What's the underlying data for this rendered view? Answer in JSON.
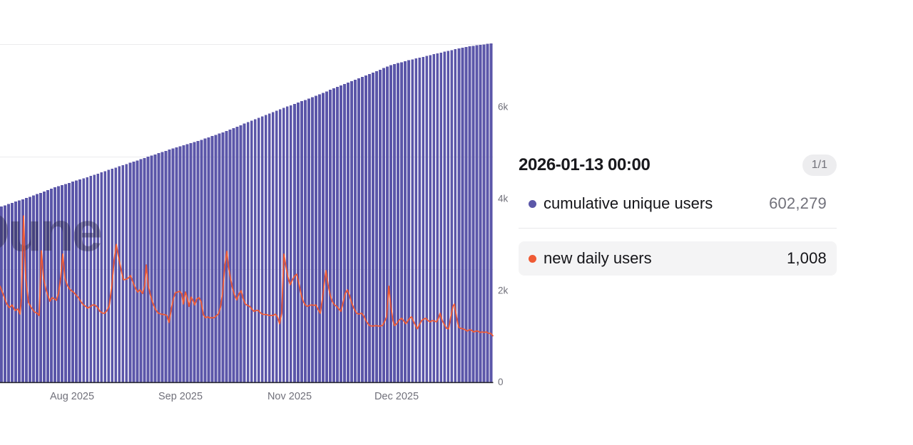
{
  "tooltip": {
    "date": "2026-01-13 00:00",
    "page_badge": "1/1",
    "rows": [
      {
        "series": "cumulative unique users",
        "value": "602,279",
        "marker_color": "#5b57a8",
        "highlighted": false
      },
      {
        "series": "new daily users",
        "value": "1,008",
        "marker_color": "#ef5a34",
        "highlighted": true
      }
    ]
  },
  "chart_data": {
    "type": "combo_bar_line",
    "title": "",
    "watermark": "Dune",
    "legend_position": "tooltip-right",
    "grid": "horizontal-only",
    "x_axis": {
      "type": "time-daily",
      "tick_labels": [
        {
          "text": "Aug 2025",
          "x": 101
        },
        {
          "text": "Sep 2025",
          "x": 253
        },
        {
          "text": "Nov 2025",
          "x": 406
        },
        {
          "text": "Dec 2025",
          "x": 556
        }
      ]
    },
    "y_axis_right": {
      "series": "new daily users",
      "range": [
        0,
        6000
      ],
      "ticks": [
        {
          "label": "6k",
          "value": 6000
        },
        {
          "label": "4k",
          "value": 4000
        },
        {
          "label": "2k",
          "value": 2000
        },
        {
          "label": "0",
          "value": 0
        }
      ]
    },
    "y_axis_left": {
      "series": "cumulative unique users",
      "hidden": true,
      "range": [
        0,
        679000
      ],
      "gridline_values": [
        200000,
        400000,
        600000
      ]
    },
    "series": [
      {
        "name": "cumulative unique users",
        "type": "bar",
        "axis": "left",
        "color": "#5b56a9",
        "bar_count": 138,
        "points": [
          [
            0,
            311000
          ],
          [
            40,
            328000
          ],
          [
            80,
            347000
          ],
          [
            120,
            363000
          ],
          [
            160,
            380000
          ],
          [
            200,
            397000
          ],
          [
            240,
            414000
          ],
          [
            280,
            429000
          ],
          [
            320,
            447000
          ],
          [
            360,
            468000
          ],
          [
            400,
            488000
          ],
          [
            440,
            507000
          ],
          [
            480,
            528000
          ],
          [
            520,
            548000
          ],
          [
            550,
            564000
          ],
          [
            580,
            574000
          ],
          [
            610,
            583000
          ],
          [
            640,
            592000
          ],
          [
            665,
            598000
          ],
          [
            691,
            602279
          ]
        ]
      },
      {
        "name": "new daily users",
        "type": "line",
        "axis": "right",
        "color": "#ef5a34",
        "points": [
          [
            0,
            2090
          ],
          [
            5,
            1890
          ],
          [
            9,
            1720
          ],
          [
            13,
            1620
          ],
          [
            17,
            1680
          ],
          [
            21,
            1560
          ],
          [
            25,
            1590
          ],
          [
            28,
            1480
          ],
          [
            30,
            1810
          ],
          [
            33,
            3620
          ],
          [
            36,
            2270
          ],
          [
            40,
            1730
          ],
          [
            44,
            1620
          ],
          [
            48,
            1530
          ],
          [
            52,
            1500
          ],
          [
            55,
            1450
          ],
          [
            58,
            2860
          ],
          [
            61,
            2270
          ],
          [
            64,
            2040
          ],
          [
            67,
            1890
          ],
          [
            70,
            1760
          ],
          [
            73,
            1840
          ],
          [
            76,
            1810
          ],
          [
            79,
            1780
          ],
          [
            82,
            1930
          ],
          [
            85,
            2270
          ],
          [
            88,
            2790
          ],
          [
            91,
            2270
          ],
          [
            94,
            2120
          ],
          [
            97,
            2040
          ],
          [
            100,
            1990
          ],
          [
            103,
            1960
          ],
          [
            107,
            1890
          ],
          [
            110,
            1840
          ],
          [
            113,
            1760
          ],
          [
            117,
            1680
          ],
          [
            120,
            1650
          ],
          [
            123,
            1610
          ],
          [
            127,
            1650
          ],
          [
            130,
            1680
          ],
          [
            133,
            1680
          ],
          [
            137,
            1620
          ],
          [
            140,
            1540
          ],
          [
            144,
            1500
          ],
          [
            147,
            1500
          ],
          [
            150,
            1560
          ],
          [
            153,
            1650
          ],
          [
            157,
            2120
          ],
          [
            160,
            2660
          ],
          [
            163,
            3000
          ],
          [
            166,
            2740
          ],
          [
            170,
            2430
          ],
          [
            173,
            2230
          ],
          [
            177,
            2240
          ],
          [
            180,
            2270
          ],
          [
            183,
            2320
          ],
          [
            187,
            2150
          ],
          [
            190,
            2040
          ],
          [
            193,
            1960
          ],
          [
            196,
            2010
          ],
          [
            200,
            1930
          ],
          [
            203,
            2120
          ],
          [
            205,
            2550
          ],
          [
            208,
            2090
          ],
          [
            211,
            1890
          ],
          [
            214,
            1730
          ],
          [
            218,
            1580
          ],
          [
            222,
            1500
          ],
          [
            226,
            1480
          ],
          [
            230,
            1470
          ],
          [
            234,
            1450
          ],
          [
            237,
            1300
          ],
          [
            240,
            1580
          ],
          [
            243,
            1810
          ],
          [
            246,
            1950
          ],
          [
            249,
            1960
          ],
          [
            252,
            1980
          ],
          [
            255,
            1920
          ],
          [
            257,
            1700
          ],
          [
            260,
            1960
          ],
          [
            263,
            1810
          ],
          [
            265,
            1650
          ],
          [
            268,
            1850
          ],
          [
            271,
            1760
          ],
          [
            273,
            1680
          ],
          [
            276,
            1810
          ],
          [
            279,
            1840
          ],
          [
            282,
            1750
          ],
          [
            285,
            1470
          ],
          [
            288,
            1400
          ],
          [
            291,
            1420
          ],
          [
            294,
            1400
          ],
          [
            297,
            1400
          ],
          [
            300,
            1400
          ],
          [
            303,
            1440
          ],
          [
            306,
            1480
          ],
          [
            309,
            1620
          ],
          [
            312,
            1930
          ],
          [
            315,
            2510
          ],
          [
            318,
            2850
          ],
          [
            320,
            2550
          ],
          [
            323,
            2270
          ],
          [
            326,
            2040
          ],
          [
            329,
            1890
          ],
          [
            332,
            1790
          ],
          [
            335,
            1920
          ],
          [
            338,
            1990
          ],
          [
            341,
            1810
          ],
          [
            344,
            1700
          ],
          [
            347,
            1670
          ],
          [
            350,
            1650
          ],
          [
            353,
            1590
          ],
          [
            356,
            1540
          ],
          [
            359,
            1560
          ],
          [
            362,
            1560
          ],
          [
            365,
            1510
          ],
          [
            368,
            1480
          ],
          [
            371,
            1470
          ],
          [
            374,
            1470
          ],
          [
            377,
            1450
          ],
          [
            380,
            1450
          ],
          [
            383,
            1450
          ],
          [
            386,
            1480
          ],
          [
            389,
            1420
          ],
          [
            392,
            1270
          ],
          [
            395,
            1500
          ],
          [
            398,
            2790
          ],
          [
            401,
            2510
          ],
          [
            404,
            2270
          ],
          [
            407,
            2120
          ],
          [
            410,
            2230
          ],
          [
            413,
            2310
          ],
          [
            416,
            2350
          ],
          [
            419,
            2150
          ],
          [
            422,
            1920
          ],
          [
            425,
            1760
          ],
          [
            428,
            1680
          ],
          [
            431,
            1650
          ],
          [
            434,
            1670
          ],
          [
            437,
            1680
          ],
          [
            440,
            1670
          ],
          [
            443,
            1680
          ],
          [
            446,
            1580
          ],
          [
            449,
            1500
          ],
          [
            452,
            1810
          ],
          [
            455,
            2200
          ],
          [
            457,
            2430
          ],
          [
            460,
            2120
          ],
          [
            463,
            1890
          ],
          [
            466,
            1750
          ],
          [
            469,
            1680
          ],
          [
            472,
            1650
          ],
          [
            475,
            1590
          ],
          [
            478,
            1540
          ],
          [
            481,
            1730
          ],
          [
            484,
            1930
          ],
          [
            487,
            2010
          ],
          [
            490,
            1890
          ],
          [
            493,
            1730
          ],
          [
            496,
            1610
          ],
          [
            500,
            1500
          ],
          [
            503,
            1480
          ],
          [
            507,
            1500
          ],
          [
            510,
            1440
          ],
          [
            513,
            1340
          ],
          [
            516,
            1270
          ],
          [
            518,
            1230
          ],
          [
            521,
            1220
          ],
          [
            524,
            1220
          ],
          [
            527,
            1230
          ],
          [
            530,
            1220
          ],
          [
            533,
            1220
          ],
          [
            536,
            1230
          ],
          [
            539,
            1310
          ],
          [
            542,
            1420
          ],
          [
            545,
            2090
          ],
          [
            548,
            1650
          ],
          [
            551,
            1340
          ],
          [
            553,
            1230
          ],
          [
            556,
            1270
          ],
          [
            559,
            1340
          ],
          [
            563,
            1390
          ],
          [
            566,
            1330
          ],
          [
            569,
            1270
          ],
          [
            572,
            1340
          ],
          [
            575,
            1400
          ],
          [
            577,
            1420
          ],
          [
            580,
            1310
          ],
          [
            583,
            1220
          ],
          [
            585,
            1160
          ],
          [
            588,
            1250
          ],
          [
            591,
            1340
          ],
          [
            594,
            1370
          ],
          [
            597,
            1390
          ],
          [
            600,
            1340
          ],
          [
            603,
            1310
          ],
          [
            606,
            1340
          ],
          [
            609,
            1330
          ],
          [
            612,
            1310
          ],
          [
            615,
            1400
          ],
          [
            617,
            1500
          ],
          [
            620,
            1340
          ],
          [
            623,
            1250
          ],
          [
            626,
            1170
          ],
          [
            629,
            1160
          ],
          [
            632,
            1420
          ],
          [
            635,
            1650
          ],
          [
            637,
            1700
          ],
          [
            640,
            1420
          ],
          [
            643,
            1190
          ],
          [
            646,
            1170
          ],
          [
            649,
            1160
          ],
          [
            652,
            1140
          ],
          [
            655,
            1110
          ],
          [
            658,
            1140
          ],
          [
            661,
            1130
          ],
          [
            664,
            1090
          ],
          [
            667,
            1110
          ],
          [
            670,
            1110
          ],
          [
            673,
            1080
          ],
          [
            676,
            1090
          ],
          [
            679,
            1080
          ],
          [
            682,
            1090
          ],
          [
            685,
            1060
          ],
          [
            688,
            1060
          ],
          [
            691,
            1008
          ]
        ]
      }
    ]
  },
  "colors": {
    "bar": "#5b56a9",
    "line": "#ef5a34",
    "gridline": "#ebebed",
    "axis_line": "#2b2b31",
    "axis_text": "#70707a",
    "watermark": "#23203c",
    "row_highlight_bg": "#f4f4f5"
  }
}
